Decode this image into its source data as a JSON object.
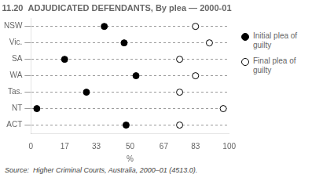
{
  "chart_data": {
    "type": "dot",
    "title": "11.20  ADJUDICATED DEFENDANTS, By plea — 2000-01",
    "orientation": "horizontal",
    "categories": [
      "NSW",
      "Vic.",
      "SA",
      "WA",
      "Tas.",
      "NT",
      "ACT"
    ],
    "series": [
      {
        "name": "Initial plea of\nguilty",
        "color": "#000000",
        "marker": "filled",
        "values": [
          37,
          47,
          17,
          53,
          28,
          3,
          48
        ]
      },
      {
        "name": "Final plea of\nguilty",
        "color": "#000000",
        "marker": "open",
        "values": [
          83,
          90,
          75,
          83,
          75,
          97,
          75
        ]
      }
    ],
    "xlabel": "%",
    "xlim": [
      0,
      100
    ],
    "xticks": [
      0,
      17,
      33,
      50,
      67,
      83,
      100
    ],
    "grid": "y",
    "legend": "right",
    "source": "Source:  Higher Criminal Courts, Australia, 2000–01 (4513.0)."
  }
}
